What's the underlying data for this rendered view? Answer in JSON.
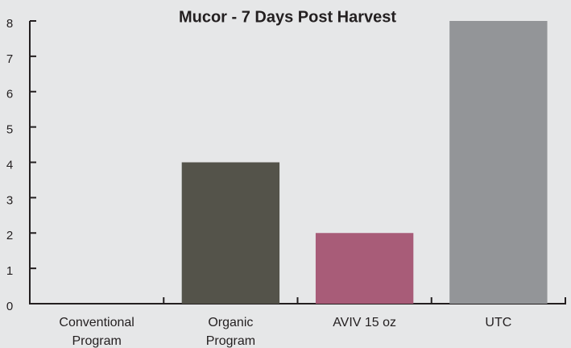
{
  "chart_data": {
    "type": "bar",
    "title": "Mucor - 7 Days Post Harvest",
    "categories": [
      "Conventional Program",
      "Organic Program",
      "AVIV 15 oz",
      "UTC"
    ],
    "values": [
      0,
      4,
      2,
      8
    ],
    "colors": [
      "#54534a",
      "#54534a",
      "#a85c78",
      "#939598"
    ],
    "ylim": [
      0,
      8
    ],
    "yticks": [
      0,
      1,
      2,
      3,
      4,
      5,
      6,
      7,
      8
    ],
    "grid": false
  }
}
